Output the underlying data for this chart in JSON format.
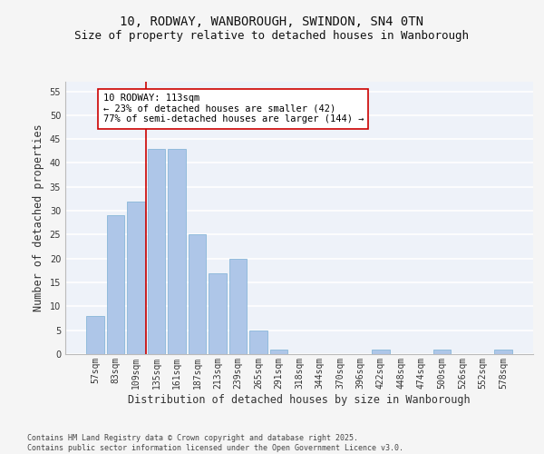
{
  "title_line1": "10, RODWAY, WANBOROUGH, SWINDON, SN4 0TN",
  "title_line2": "Size of property relative to detached houses in Wanborough",
  "xlabel": "Distribution of detached houses by size in Wanborough",
  "ylabel": "Number of detached properties",
  "categories": [
    "57sqm",
    "83sqm",
    "109sqm",
    "135sqm",
    "161sqm",
    "187sqm",
    "213sqm",
    "239sqm",
    "265sqm",
    "291sqm",
    "318sqm",
    "344sqm",
    "370sqm",
    "396sqm",
    "422sqm",
    "448sqm",
    "474sqm",
    "500sqm",
    "526sqm",
    "552sqm",
    "578sqm"
  ],
  "values": [
    8,
    29,
    32,
    43,
    43,
    25,
    17,
    20,
    5,
    1,
    0,
    0,
    0,
    0,
    1,
    0,
    0,
    1,
    0,
    0,
    1
  ],
  "bar_color": "#aec6e8",
  "bar_edge_color": "#7aafd4",
  "vline_x": 2.5,
  "vline_color": "#cc0000",
  "annotation_text": "10 RODWAY: 113sqm\n← 23% of detached houses are smaller (42)\n77% of semi-detached houses are larger (144) →",
  "annotation_box_color": "#ffffff",
  "annotation_box_edge_color": "#cc0000",
  "ylim": [
    0,
    57
  ],
  "yticks": [
    0,
    5,
    10,
    15,
    20,
    25,
    30,
    35,
    40,
    45,
    50,
    55
  ],
  "background_color": "#eef2f9",
  "grid_color": "#ffffff",
  "footer_text": "Contains HM Land Registry data © Crown copyright and database right 2025.\nContains public sector information licensed under the Open Government Licence v3.0.",
  "title_fontsize": 10,
  "subtitle_fontsize": 9,
  "tick_fontsize": 7,
  "label_fontsize": 8.5,
  "annotation_fontsize": 7.5,
  "fig_bg": "#f5f5f5"
}
